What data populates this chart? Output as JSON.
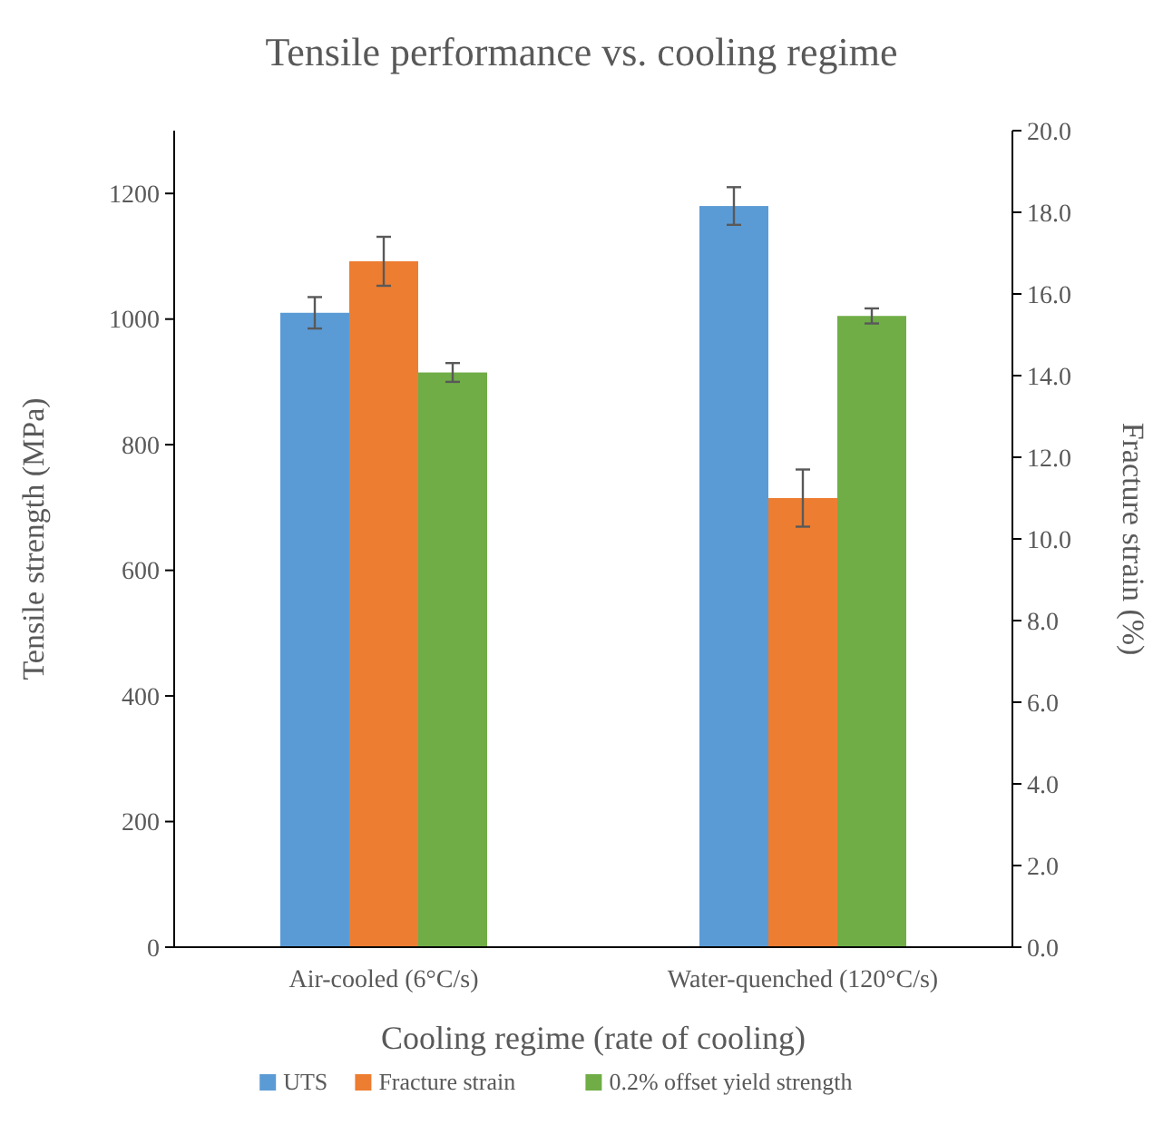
{
  "chart_data": {
    "type": "bar",
    "title": "Tensile performance vs. cooling regime",
    "xlabel": "Cooling regime (rate of cooling)",
    "ylabel": "Tensile strength (MPa)",
    "y2label": "Fracture strain (%)",
    "categories": [
      "Air-cooled (6°C/s)",
      "Water-quenched (120°C/s)"
    ],
    "series": [
      {
        "name": "UTS",
        "color": "#5b9bd5",
        "values": [
          1010,
          1180
        ],
        "errors": [
          25,
          30
        ]
      },
      {
        "name": "Fracture strain",
        "color": "#ed7d31",
        "values": [
          16.8,
          11.0
        ],
        "errors": [
          0.6,
          0.7
        ],
        "axis": "y2"
      },
      {
        "name": "0.2% offset yield strength",
        "color": "#70ad47",
        "values": [
          915,
          1005
        ],
        "errors": [
          15,
          12
        ]
      }
    ],
    "ylim": [
      0,
      1300
    ],
    "yticks": [
      0,
      200,
      400,
      600,
      800,
      1000,
      1200
    ],
    "y2lim": [
      0,
      20
    ],
    "y2ticks": [
      {
        "value": 0,
        "label": "0.0"
      },
      {
        "value": 2,
        "label": "2.0"
      },
      {
        "value": 4,
        "label": "4.0"
      },
      {
        "value": 6,
        "label": "6.0"
      },
      {
        "value": 8,
        "label": "8.0"
      },
      {
        "value": 10,
        "label": "10.0"
      },
      {
        "value": 12,
        "label": "12.0"
      },
      {
        "value": 14,
        "label": "14.0"
      },
      {
        "value": 16,
        "label": "16.0"
      },
      {
        "value": 18,
        "label": "18.0"
      },
      {
        "value": 20,
        "label": "20.0"
      }
    ],
    "legend": "bottom"
  }
}
